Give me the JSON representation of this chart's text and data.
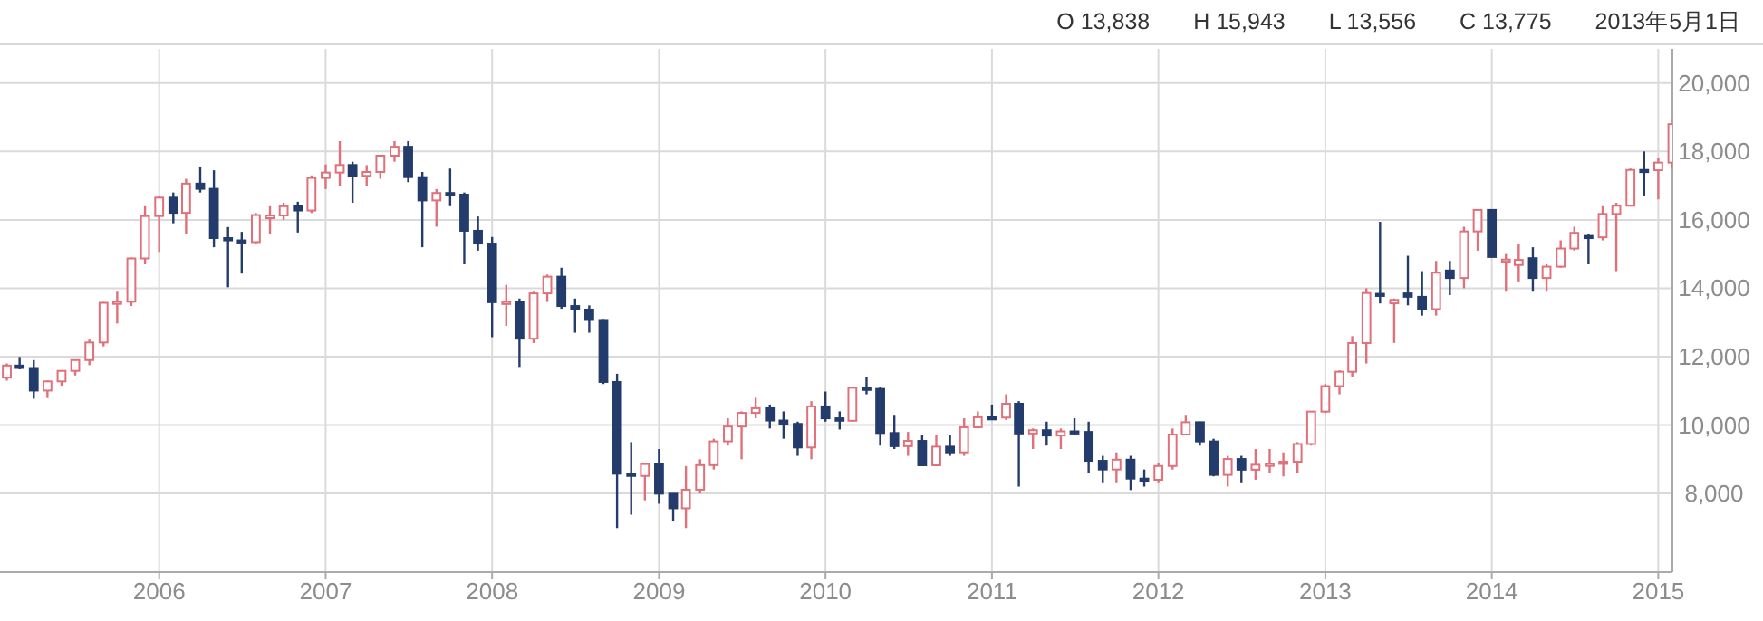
{
  "chart_data": {
    "type": "candlestick",
    "annotations": [
      "O 13,838",
      "H 15,943",
      "L 13,556",
      "C 13,775",
      "2013年5月1日"
    ],
    "x": [
      "2005-02",
      "2005-03",
      "2005-04",
      "2005-05",
      "2005-06",
      "2005-07",
      "2005-08",
      "2005-09",
      "2005-10",
      "2005-11",
      "2005-12",
      "2006-01",
      "2006-02",
      "2006-03",
      "2006-04",
      "2006-05",
      "2006-06",
      "2006-07",
      "2006-08",
      "2006-09",
      "2006-10",
      "2006-11",
      "2006-12",
      "2007-01",
      "2007-02",
      "2007-03",
      "2007-04",
      "2007-05",
      "2007-06",
      "2007-07",
      "2007-08",
      "2007-09",
      "2007-10",
      "2007-11",
      "2007-12",
      "2008-01",
      "2008-02",
      "2008-03",
      "2008-04",
      "2008-05",
      "2008-06",
      "2008-07",
      "2008-08",
      "2008-09",
      "2008-10",
      "2008-11",
      "2008-12",
      "2009-01",
      "2009-02",
      "2009-03",
      "2009-04",
      "2009-05",
      "2009-06",
      "2009-07",
      "2009-08",
      "2009-09",
      "2009-10",
      "2009-11",
      "2009-12",
      "2010-01",
      "2010-02",
      "2010-03",
      "2010-04",
      "2010-05",
      "2010-06",
      "2010-07",
      "2010-08",
      "2010-09",
      "2010-10",
      "2010-11",
      "2010-12",
      "2011-01",
      "2011-02",
      "2011-03",
      "2011-04",
      "2011-05",
      "2011-06",
      "2011-07",
      "2011-08",
      "2011-09",
      "2011-10",
      "2011-11",
      "2011-12",
      "2012-01",
      "2012-02",
      "2012-03",
      "2012-04",
      "2012-05",
      "2012-06",
      "2012-07",
      "2012-08",
      "2012-09",
      "2012-10",
      "2012-11",
      "2012-12",
      "2013-01",
      "2013-02",
      "2013-03",
      "2013-04",
      "2013-05",
      "2013-06",
      "2013-07",
      "2013-08",
      "2013-09",
      "2013-10",
      "2013-11",
      "2013-12",
      "2014-01",
      "2014-02",
      "2014-03",
      "2014-04",
      "2014-05",
      "2014-06",
      "2014-07",
      "2014-08",
      "2014-09",
      "2014-10",
      "2014-11",
      "2014-12",
      "2015-01",
      "2015-02"
    ],
    "ohlc": [
      [
        11388,
        11800,
        11300,
        11740
      ],
      [
        11740,
        11990,
        11630,
        11669
      ],
      [
        11669,
        11900,
        10770,
        11009
      ],
      [
        11009,
        11300,
        10790,
        11277
      ],
      [
        11277,
        11600,
        11150,
        11584
      ],
      [
        11584,
        11900,
        11450,
        11900
      ],
      [
        11900,
        12500,
        11750,
        12414
      ],
      [
        12414,
        13600,
        12300,
        13574
      ],
      [
        13574,
        13900,
        12970,
        13607
      ],
      [
        13607,
        14900,
        13480,
        14872
      ],
      [
        14872,
        16400,
        14700,
        16111
      ],
      [
        16111,
        16700,
        15060,
        16650
      ],
      [
        16650,
        16800,
        15900,
        16206
      ],
      [
        16206,
        17200,
        15600,
        17060
      ],
      [
        17060,
        17560,
        16800,
        16907
      ],
      [
        16907,
        17450,
        15200,
        15467
      ],
      [
        15467,
        15790,
        14030,
        15400
      ],
      [
        15400,
        15650,
        14430,
        15350
      ],
      [
        15350,
        16200,
        15300,
        16141
      ],
      [
        16050,
        16400,
        15600,
        16128
      ],
      [
        16128,
        16500,
        16000,
        16399
      ],
      [
        16399,
        16530,
        15630,
        16274
      ],
      [
        16274,
        17300,
        16200,
        17226
      ],
      [
        17226,
        17620,
        16900,
        17383
      ],
      [
        17383,
        18300,
        17000,
        17604
      ],
      [
        17604,
        17700,
        16500,
        17288
      ],
      [
        17288,
        17600,
        17000,
        17400
      ],
      [
        17400,
        17900,
        17200,
        17876
      ],
      [
        17876,
        18300,
        17700,
        18138
      ],
      [
        18138,
        18300,
        17100,
        17249
      ],
      [
        17249,
        17400,
        15200,
        16569
      ],
      [
        16569,
        16900,
        15800,
        16786
      ],
      [
        16786,
        17500,
        16400,
        16738
      ],
      [
        16738,
        16800,
        14700,
        15681
      ],
      [
        15681,
        16100,
        15100,
        15308
      ],
      [
        15308,
        15500,
        12570,
        13592
      ],
      [
        13592,
        14100,
        12900,
        13603
      ],
      [
        13603,
        13700,
        11700,
        12526
      ],
      [
        12526,
        13900,
        12400,
        13850
      ],
      [
        13850,
        14400,
        13600,
        14339
      ],
      [
        14339,
        14600,
        13400,
        13481
      ],
      [
        13481,
        13700,
        12700,
        13377
      ],
      [
        13377,
        13500,
        12700,
        13073
      ],
      [
        13073,
        13100,
        11200,
        11260
      ],
      [
        11260,
        11500,
        6990,
        8577
      ],
      [
        8577,
        9500,
        7380,
        8512
      ],
      [
        8512,
        8900,
        7800,
        8860
      ],
      [
        8860,
        9300,
        7700,
        7994
      ],
      [
        7994,
        8000,
        7200,
        7568
      ],
      [
        7568,
        8800,
        6990,
        8110
      ],
      [
        8110,
        9000,
        8000,
        8828
      ],
      [
        8828,
        9600,
        8700,
        9523
      ],
      [
        9523,
        10200,
        9400,
        9958
      ],
      [
        9958,
        10400,
        9000,
        10357
      ],
      [
        10357,
        10800,
        10200,
        10493
      ],
      [
        10493,
        10600,
        9900,
        10133
      ],
      [
        10133,
        10400,
        9600,
        10035
      ],
      [
        10035,
        10100,
        9100,
        9345
      ],
      [
        9345,
        10700,
        9000,
        10546
      ],
      [
        10546,
        10980,
        10100,
        10198
      ],
      [
        10198,
        10400,
        9870,
        10126
      ],
      [
        10126,
        11100,
        10100,
        11090
      ],
      [
        11090,
        11400,
        10900,
        11057
      ],
      [
        11057,
        11100,
        9400,
        9768
      ],
      [
        9768,
        10300,
        9300,
        9383
      ],
      [
        9383,
        9800,
        9100,
        9537
      ],
      [
        9537,
        9700,
        8800,
        8824
      ],
      [
        8824,
        9700,
        8800,
        9369
      ],
      [
        9369,
        9700,
        9100,
        9202
      ],
      [
        9202,
        10200,
        9100,
        9937
      ],
      [
        9937,
        10400,
        9900,
        10229
      ],
      [
        10229,
        10600,
        10150,
        10220
      ],
      [
        10220,
        10900,
        10150,
        10624
      ],
      [
        10624,
        10700,
        8200,
        9755
      ],
      [
        9755,
        9900,
        9300,
        9850
      ],
      [
        9850,
        10100,
        9400,
        9694
      ],
      [
        9694,
        9900,
        9300,
        9816
      ],
      [
        9816,
        10200,
        9700,
        9800
      ],
      [
        9800,
        10100,
        8600,
        8955
      ],
      [
        8955,
        9100,
        8300,
        8700
      ],
      [
        8700,
        9200,
        8300,
        8988
      ],
      [
        8988,
        9100,
        8100,
        8434
      ],
      [
        8434,
        8700,
        8200,
        8400
      ],
      [
        8400,
        8900,
        8300,
        8803
      ],
      [
        8803,
        9900,
        8700,
        9723
      ],
      [
        9723,
        10300,
        9700,
        10084
      ],
      [
        10084,
        10100,
        9400,
        9521
      ],
      [
        9521,
        9600,
        8500,
        8543
      ],
      [
        8543,
        9100,
        8200,
        9007
      ],
      [
        9007,
        9100,
        8300,
        8695
      ],
      [
        8695,
        9300,
        8400,
        8840
      ],
      [
        8840,
        9300,
        8600,
        8870
      ],
      [
        8870,
        9200,
        8500,
        8928
      ],
      [
        8928,
        9500,
        8600,
        9446
      ],
      [
        9446,
        10400,
        9400,
        10395
      ],
      [
        10395,
        11200,
        10350,
        11139
      ],
      [
        11139,
        11600,
        10900,
        11559
      ],
      [
        11559,
        12600,
        11400,
        12398
      ],
      [
        12398,
        14000,
        11800,
        13861
      ],
      [
        13838,
        15943,
        13556,
        13775
      ],
      [
        13560,
        13700,
        12400,
        13660
      ],
      [
        13850,
        14950,
        13500,
        13750
      ],
      [
        13750,
        14500,
        13200,
        13389
      ],
      [
        13389,
        14800,
        13200,
        14456
      ],
      [
        14520,
        14800,
        13800,
        14300
      ],
      [
        14300,
        15800,
        14000,
        15662
      ],
      [
        15662,
        16300,
        15100,
        16291
      ],
      [
        16291,
        16300,
        14900,
        14915
      ],
      [
        14790,
        15000,
        13900,
        14840
      ],
      [
        14680,
        15300,
        14200,
        14830
      ],
      [
        14880,
        15200,
        13900,
        14300
      ],
      [
        14300,
        14700,
        13900,
        14632
      ],
      [
        14632,
        15400,
        14600,
        15162
      ],
      [
        15162,
        15800,
        15100,
        15621
      ],
      [
        15530,
        15600,
        14700,
        15490
      ],
      [
        15490,
        16400,
        15400,
        16174
      ],
      [
        16174,
        16500,
        14500,
        16414
      ],
      [
        16414,
        17500,
        16400,
        17460
      ],
      [
        17460,
        18000,
        16700,
        17451
      ],
      [
        17451,
        17800,
        16600,
        17674
      ],
      [
        17674,
        18800,
        17500,
        18798
      ]
    ],
    "colors": [
      "#e0707a",
      "#243c6b",
      "#243c6b",
      "#e0707a",
      "#e0707a",
      "#e0707a",
      "#e0707a",
      "#e0707a",
      "#e0707a",
      "#e0707a",
      "#e0707a",
      "#e0707a",
      "#243c6b",
      "#e0707a",
      "#243c6b",
      "#243c6b",
      "#243c6b",
      "#243c6b",
      "#e0707a",
      "#e0707a",
      "#e0707a",
      "#243c6b",
      "#e0707a",
      "#e0707a",
      "#e0707a",
      "#243c6b",
      "#e0707a",
      "#e0707a",
      "#e0707a",
      "#243c6b",
      "#243c6b",
      "#e0707a",
      "#243c6b",
      "#243c6b",
      "#243c6b",
      "#243c6b",
      "#e0707a",
      "#243c6b",
      "#e0707a",
      "#e0707a",
      "#243c6b",
      "#243c6b",
      "#243c6b",
      "#243c6b",
      "#243c6b",
      "#243c6b",
      "#e0707a",
      "#243c6b",
      "#243c6b",
      "#e0707a",
      "#e0707a",
      "#e0707a",
      "#e0707a",
      "#e0707a",
      "#e0707a",
      "#243c6b",
      "#243c6b",
      "#243c6b",
      "#e0707a",
      "#243c6b",
      "#243c6b",
      "#e0707a",
      "#243c6b",
      "#243c6b",
      "#243c6b",
      "#e0707a",
      "#243c6b",
      "#e0707a",
      "#243c6b",
      "#e0707a",
      "#e0707a",
      "#243c6b",
      "#e0707a",
      "#243c6b",
      "#e0707a",
      "#243c6b",
      "#e0707a",
      "#243c6b",
      "#243c6b",
      "#243c6b",
      "#e0707a",
      "#243c6b",
      "#243c6b",
      "#e0707a",
      "#e0707a",
      "#e0707a",
      "#243c6b",
      "#243c6b",
      "#e0707a",
      "#243c6b",
      "#e0707a",
      "#e0707a",
      "#e0707a",
      "#e0707a",
      "#e0707a",
      "#e0707a",
      "#e0707a",
      "#e0707a",
      "#e0707a",
      "#243c6b",
      "#e0707a",
      "#243c6b",
      "#243c6b",
      "#e0707a",
      "#243c6b",
      "#e0707a",
      "#e0707a",
      "#243c6b",
      "#e0707a",
      "#e0707a",
      "#243c6b",
      "#e0707a",
      "#e0707a",
      "#e0707a",
      "#243c6b",
      "#e0707a",
      "#e0707a",
      "#e0707a",
      "#243c6b",
      "#e0707a",
      "#e0707a"
    ],
    "xlim": [
      "2005-01-17",
      "2015-02-01"
    ],
    "xticks": [
      "2006",
      "2007",
      "2008",
      "2009",
      "2010",
      "2011",
      "2012",
      "2013",
      "2014",
      "2015"
    ],
    "ylim": [
      5700,
      21000
    ],
    "yticks": [
      {
        "value": 8000,
        "label": "8,000"
      },
      {
        "value": 10000,
        "label": "10,000"
      },
      {
        "value": 12000,
        "label": "12,000"
      },
      {
        "value": 14000,
        "label": "14,000"
      },
      {
        "value": 16000,
        "label": "16,000"
      },
      {
        "value": 18000,
        "label": "18,000"
      },
      {
        "value": 20000,
        "label": "20,000"
      }
    ],
    "grid": true
  }
}
